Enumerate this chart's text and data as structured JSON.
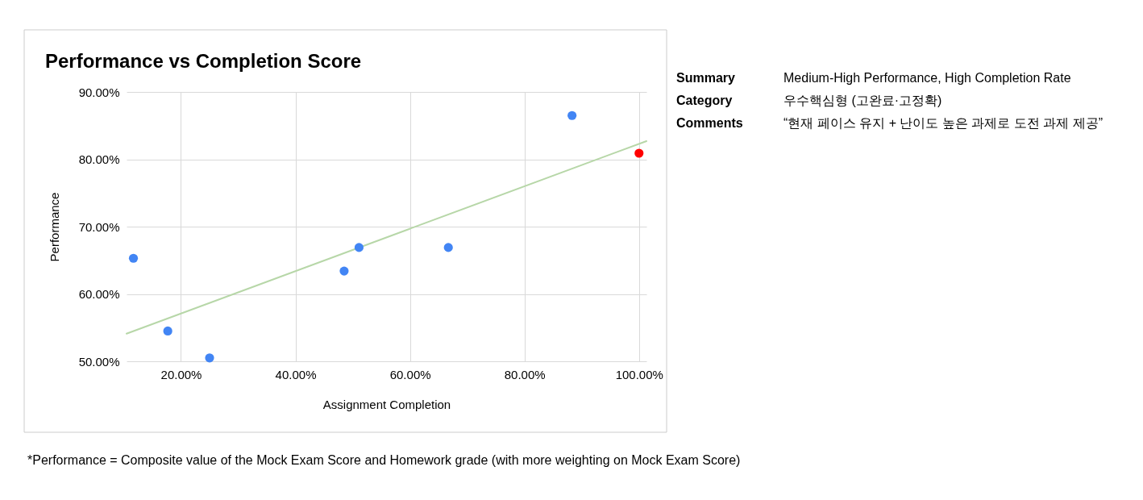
{
  "chart_data": [
    {
      "type": "scatter",
      "title": "Performance vs Completion Score",
      "xlabel": "Assignment Completion",
      "ylabel": "Performance",
      "xlim": [
        10.5,
        101.3
      ],
      "ylim": [
        50,
        90
      ],
      "xticks": [
        {
          "value": 20,
          "label": "20.00%"
        },
        {
          "value": 40,
          "label": "40.00%"
        },
        {
          "value": 60,
          "label": "60.00%"
        },
        {
          "value": 80,
          "label": "80.00%"
        },
        {
          "value": 100,
          "label": "100.00%"
        }
      ],
      "yticks": [
        {
          "value": 50,
          "label": "50.00%"
        },
        {
          "value": 60,
          "label": "60.00%"
        },
        {
          "value": 70,
          "label": "70.00%"
        },
        {
          "value": 80,
          "label": "80.00%"
        },
        {
          "value": 90,
          "label": "90.00%"
        }
      ],
      "grid": true,
      "marker": "circle",
      "series": [
        {
          "type": "scatter",
          "x": [
            11.7,
            17.7,
            25.0,
            48.5,
            51.1,
            66.7,
            88.3,
            100.0
          ],
          "values": [
            65.3,
            54.5,
            50.5,
            63.4,
            66.9,
            66.9,
            86.5,
            80.9
          ],
          "colors": [
            "#4285f4",
            "#4285f4",
            "#4285f4",
            "#4285f4",
            "#4285f4",
            "#4285f4",
            "#4285f4",
            "#ff0000"
          ]
        },
        {
          "type": "line",
          "x": [
            10.5,
            101.3
          ],
          "values": [
            54.1,
            82.7
          ],
          "color": "#b7d7a8",
          "marker": "none"
        }
      ],
      "annotations": [
        "*Performance = Composite value of the Mock Exam Score and Homework grade (with more weighting on Mock Exam Score)"
      ]
    },
    {
      "type": "other",
      "annotations": [
        "Summary",
        "Medium-High Performance, High Completion Rate",
        "Category",
        "우수핵심형 (고완료·고정확)",
        "Comments",
        "“현재 페이스 유지 + 난이도 높은 과제로 도전 과제 제공”"
      ]
    }
  ]
}
